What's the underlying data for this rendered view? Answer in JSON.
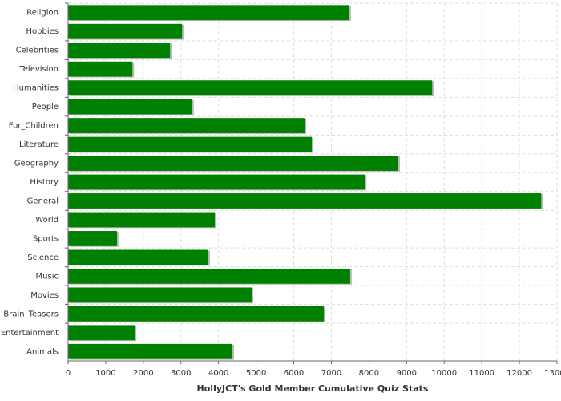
{
  "chart_data": {
    "type": "bar",
    "orientation": "horizontal",
    "x_label": "HollyJCT's Gold Member Cumulative Quiz Stats",
    "categories": [
      "Religion",
      "Hobbies",
      "Celebrities",
      "Television",
      "Humanities",
      "People",
      "For_Children",
      "Literature",
      "Geography",
      "History",
      "General",
      "World",
      "Sports",
      "Science",
      "Music",
      "Movies",
      "Brain_Teasers",
      "Entertainment",
      "Animals"
    ],
    "values": [
      7480,
      3030,
      2710,
      1710,
      9680,
      3300,
      6290,
      6480,
      8780,
      7890,
      12580,
      3900,
      1300,
      3730,
      7500,
      4880,
      6800,
      1770,
      4370
    ],
    "color": "#008000",
    "xlim": [
      0,
      13000
    ],
    "xticks": [
      0,
      1000,
      2000,
      3000,
      4000,
      5000,
      6000,
      7000,
      8000,
      9000,
      10000,
      11000,
      12000,
      13000
    ],
    "grid": true
  }
}
